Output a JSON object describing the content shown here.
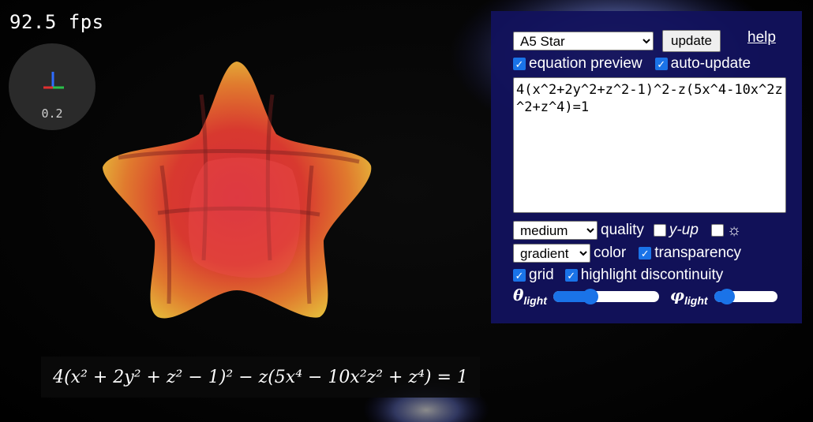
{
  "fps": {
    "text": "92.5 fps"
  },
  "axes": {
    "scale": "0.2"
  },
  "equation_render": {
    "text": "4(x² + 2y² + z² − 1)² − z(5x⁴ − 10x²z² + z⁴) = 1"
  },
  "panel": {
    "preset": {
      "selected": "A5 Star"
    },
    "update_label": "update",
    "help_label": "help",
    "equation_preview": {
      "label": "equation preview",
      "checked": true
    },
    "auto_update": {
      "label": "auto-update",
      "checked": true
    },
    "equation_text": "4(x^2+2y^2+z^2-1)^2-z(5x^4-10x^2z^2+z^4)=1",
    "quality": {
      "selected": "medium",
      "label": "quality"
    },
    "y_up": {
      "label": "y-up",
      "checked": false
    },
    "light_toggle": {
      "icon": "sun-icon",
      "symbol": "☼",
      "checked": false
    },
    "color": {
      "selected": "gradient",
      "label": "color"
    },
    "transparency": {
      "label": "transparency",
      "checked": true
    },
    "grid": {
      "label": "grid",
      "checked": true
    },
    "highlight": {
      "label": "highlight discontinuity",
      "checked": true
    },
    "theta_light": {
      "symbol": "θ",
      "sub": "light",
      "value_fraction": 0.35
    },
    "phi_light": {
      "symbol": "φ",
      "sub": "light",
      "value_fraction": 0.2
    }
  },
  "colors": {
    "panel_bg": "#12125c",
    "accent": "#1a73e8",
    "star_inner": "#d8343a",
    "star_outer": "#e8c040"
  }
}
